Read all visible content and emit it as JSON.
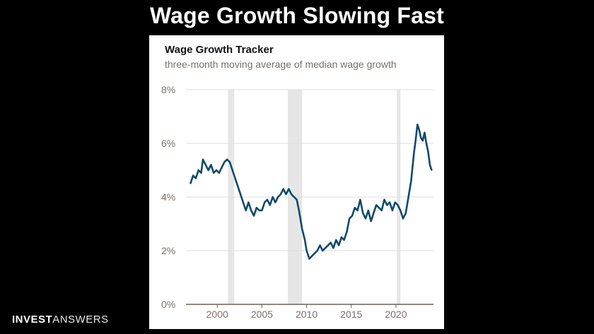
{
  "slide": {
    "title": "Wage Growth Slowing Fast",
    "brand_bold": "INVEST",
    "brand_light": "ANSWERS"
  },
  "colors": {
    "line": "#0f4a6b",
    "recession": "#e6e6e6",
    "grid": "#dcdcdc",
    "tick_text": "#7a7068"
  },
  "chart_data": {
    "type": "line",
    "title": "Wage Growth Tracker",
    "subtitle": "three-month moving average of median wage growth",
    "xlabel": "",
    "ylabel": "",
    "xlim": [
      1996.5,
      2024.2
    ],
    "ylim": [
      0,
      8
    ],
    "y_ticks": [
      {
        "value": 0,
        "label": "0%"
      },
      {
        "value": 2,
        "label": "2%"
      },
      {
        "value": 4,
        "label": "4%"
      },
      {
        "value": 6,
        "label": "6%"
      },
      {
        "value": 8,
        "label": "8%"
      }
    ],
    "x_ticks": [
      {
        "value": 2000,
        "label": "2000"
      },
      {
        "value": 2005,
        "label": "2005"
      },
      {
        "value": 2010,
        "label": "2010"
      },
      {
        "value": 2015,
        "label": "2015"
      },
      {
        "value": 2020,
        "label": "2020"
      }
    ],
    "recessions": [
      [
        2001.2,
        2001.9
      ],
      [
        2007.9,
        2009.5
      ],
      [
        2020.1,
        2020.5
      ]
    ],
    "series": [
      {
        "name": "Wage Growth Tracker",
        "x": [
          1997.0,
          1997.3,
          1997.6,
          1997.9,
          1998.2,
          1998.4,
          1998.7,
          1999.0,
          1999.3,
          1999.6,
          1999.9,
          2000.2,
          2000.5,
          2000.8,
          2001.1,
          2001.4,
          2001.7,
          2002.0,
          2002.3,
          2002.6,
          2002.9,
          2003.2,
          2003.5,
          2003.8,
          2004.1,
          2004.4,
          2004.7,
          2005.0,
          2005.3,
          2005.6,
          2005.9,
          2006.2,
          2006.5,
          2006.8,
          2007.1,
          2007.4,
          2007.7,
          2008.0,
          2008.3,
          2008.6,
          2008.9,
          2009.2,
          2009.5,
          2009.8,
          2010.0,
          2010.3,
          2010.6,
          2010.9,
          2011.2,
          2011.5,
          2011.8,
          2012.1,
          2012.4,
          2012.7,
          2013.0,
          2013.3,
          2013.6,
          2013.9,
          2014.2,
          2014.5,
          2014.8,
          2015.1,
          2015.4,
          2015.7,
          2016.0,
          2016.3,
          2016.6,
          2016.9,
          2017.2,
          2017.5,
          2017.8,
          2018.1,
          2018.4,
          2018.7,
          2019.0,
          2019.3,
          2019.6,
          2019.9,
          2020.2,
          2020.5,
          2020.8,
          2021.1,
          2021.4,
          2021.7,
          2022.0,
          2022.2,
          2022.4,
          2022.6,
          2022.8,
          2023.0,
          2023.2,
          2023.4,
          2023.6,
          2023.8,
          2024.0
        ],
        "y": [
          4.5,
          4.8,
          4.7,
          5.0,
          4.9,
          5.4,
          5.2,
          5.0,
          5.2,
          4.9,
          5.0,
          4.9,
          5.1,
          5.3,
          5.4,
          5.3,
          5.0,
          4.7,
          4.4,
          4.1,
          3.8,
          3.5,
          3.8,
          3.5,
          3.3,
          3.6,
          3.5,
          3.5,
          3.8,
          3.9,
          3.7,
          4.0,
          3.8,
          4.0,
          4.1,
          4.3,
          4.1,
          4.3,
          4.1,
          4.0,
          3.9,
          3.4,
          2.8,
          2.4,
          2.0,
          1.7,
          1.8,
          1.9,
          2.0,
          2.2,
          2.0,
          2.1,
          2.2,
          2.3,
          2.1,
          2.4,
          2.2,
          2.5,
          2.4,
          2.7,
          3.2,
          3.3,
          3.6,
          3.5,
          3.9,
          3.4,
          3.2,
          3.5,
          3.1,
          3.4,
          3.7,
          3.6,
          3.5,
          3.9,
          3.7,
          3.8,
          3.5,
          3.8,
          3.7,
          3.5,
          3.2,
          3.4,
          4.0,
          4.6,
          5.6,
          6.1,
          6.7,
          6.5,
          6.2,
          6.1,
          6.4,
          6.0,
          5.7,
          5.2,
          5.0
        ]
      }
    ]
  }
}
